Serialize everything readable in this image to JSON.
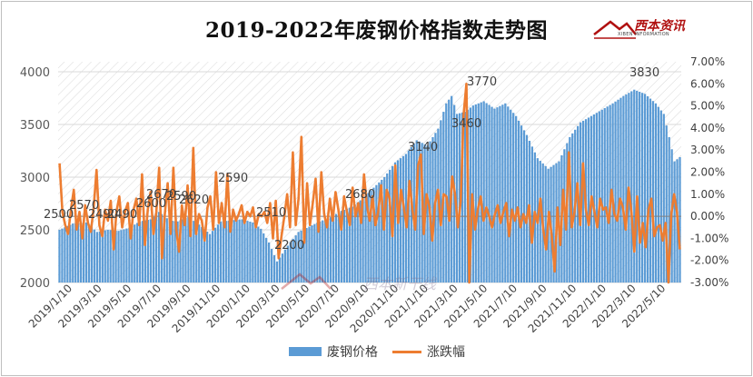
{
  "title": "2019-2022年废钢价格指数走势图",
  "logo": {
    "text": "西本资讯",
    "subtext": "XIBEN INFORMATION"
  },
  "watermark": {
    "text": "西本新干线"
  },
  "colors": {
    "bars": "#5b9bd5",
    "line": "#ed7d31",
    "hatch": "#d9d9d9"
  },
  "chart_data": {
    "type": "bar",
    "title": "2019-2022年废钢价格指数走势图",
    "x_tick_labels": [
      "2019/1/10",
      "2019/3/10",
      "2019/5/10",
      "2019/7/10",
      "2019/9/10",
      "2019/11/10",
      "2020/1/10",
      "2020/3/10",
      "2020/5/10",
      "2020/7/10",
      "2020/9/10",
      "2020/11/10",
      "2021/1/10",
      "2021/3/10",
      "2021/5/10",
      "2021/7/10",
      "2021/9/10",
      "2021/11/10",
      "2022/1/10",
      "2022/3/10",
      "2022/5/10"
    ],
    "y_left": {
      "ylim": [
        2000,
        4000
      ],
      "ticks": [
        2000,
        2500,
        3000,
        3500,
        4000
      ]
    },
    "y_right": {
      "ylim": [
        -3,
        7
      ],
      "ticks": [
        "-3.00%",
        "-2.00%",
        "-1.00%",
        "0.00%",
        "1.00%",
        "2.00%",
        "3.00%",
        "4.00%",
        "5.00%",
        "6.00%",
        "7.00%"
      ]
    },
    "legend_position": "bottom",
    "series": [
      {
        "name": "废钢价格",
        "type": "bar",
        "axis": "left",
        "anchors": [
          [
            0,
            2500
          ],
          [
            5,
            2560
          ],
          [
            10,
            2570
          ],
          [
            14,
            2480
          ],
          [
            18,
            2500
          ],
          [
            22,
            2490
          ],
          [
            26,
            2520
          ],
          [
            30,
            2580
          ],
          [
            34,
            2600
          ],
          [
            37,
            2670
          ],
          [
            41,
            2590
          ],
          [
            44,
            2580
          ],
          [
            48,
            2620
          ],
          [
            52,
            2550
          ],
          [
            56,
            2460
          ],
          [
            60,
            2580
          ],
          [
            64,
            2590
          ],
          [
            68,
            2600
          ],
          [
            72,
            2570
          ],
          [
            75,
            2510
          ],
          [
            78,
            2380
          ],
          [
            81,
            2200
          ],
          [
            85,
            2350
          ],
          [
            89,
            2480
          ],
          [
            93,
            2530
          ],
          [
            97,
            2580
          ],
          [
            101,
            2620
          ],
          [
            105,
            2680
          ],
          [
            109,
            2720
          ],
          [
            113,
            2800
          ],
          [
            117,
            2900
          ],
          [
            121,
            3000
          ],
          [
            125,
            3140
          ],
          [
            129,
            3220
          ],
          [
            133,
            3350
          ],
          [
            137,
            3300
          ],
          [
            141,
            3460
          ],
          [
            144,
            3700
          ],
          [
            146,
            3770
          ],
          [
            148,
            3600
          ],
          [
            151,
            3620
          ],
          [
            154,
            3680
          ],
          [
            158,
            3720
          ],
          [
            162,
            3650
          ],
          [
            166,
            3700
          ],
          [
            170,
            3580
          ],
          [
            174,
            3400
          ],
          [
            178,
            3180
          ],
          [
            182,
            3080
          ],
          [
            186,
            3150
          ],
          [
            190,
            3380
          ],
          [
            194,
            3520
          ],
          [
            198,
            3580
          ],
          [
            202,
            3640
          ],
          [
            206,
            3700
          ],
          [
            210,
            3770
          ],
          [
            214,
            3830
          ],
          [
            218,
            3790
          ],
          [
            222,
            3700
          ],
          [
            225,
            3600
          ],
          [
            227,
            3380
          ],
          [
            229,
            3150
          ],
          [
            231,
            3190
          ]
        ],
        "labels": [
          {
            "text": "2500",
            "value": 2500
          },
          {
            "text": "2570",
            "value": 2570
          },
          {
            "text": "2490",
            "value": 2490
          },
          {
            "text": "2490",
            "value": 2490
          },
          {
            "text": "2600",
            "value": 2600
          },
          {
            "text": "2670",
            "value": 2670
          },
          {
            "text": "2590",
            "value": 2590
          },
          {
            "text": "2620",
            "value": 2620
          },
          {
            "text": "2590",
            "value": 2590
          },
          {
            "text": "2510",
            "value": 2510
          },
          {
            "text": "2200",
            "value": 2200
          },
          {
            "text": "2680",
            "value": 2680
          },
          {
            "text": "3140",
            "value": 3140
          },
          {
            "text": "3460",
            "value": 3460
          },
          {
            "text": "3770",
            "value": 3770
          },
          {
            "text": "3830",
            "value": 3830
          }
        ]
      },
      {
        "name": "涨跌幅",
        "type": "line",
        "axis": "right",
        "unit": "%",
        "values": [
          2.4,
          0.2,
          -0.4,
          -0.8,
          0.3,
          1.2,
          -0.6,
          0.2,
          -1.0,
          0.5,
          -0.3,
          -0.7,
          0.4,
          2.1,
          -0.4,
          -0.9,
          0.3,
          -0.2,
          0.7,
          -1.5,
          0.2,
          0.9,
          -0.5,
          0.2,
          0.6,
          -1.0,
          0.3,
          0.8,
          -0.4,
          1.9,
          -1.3,
          0.3,
          1.1,
          -0.8,
          0.2,
          2.2,
          -1.9,
          0.1,
          1.5,
          -0.8,
          2.2,
          -0.6,
          -1.6,
          0.5,
          -0.4,
          1.4,
          -0.9,
          3.1,
          -0.8,
          0.1,
          -0.2,
          -1.1,
          0.4,
          0.9,
          -0.6,
          2.0,
          -0.3,
          0.6,
          -0.5,
          1.9,
          -0.7,
          0.3,
          -0.2,
          0.1,
          0.5,
          -0.3,
          0.2,
          0.0,
          0.4,
          -0.5,
          0.1,
          0.0,
          0.2,
          -0.3,
          0.6,
          -1.0,
          0.7,
          -1.9,
          -0.9,
          0.0,
          1.0,
          -0.5,
          2.9,
          -0.4,
          0.8,
          3.6,
          -1.2,
          1.5,
          -0.4,
          0.6,
          1.7,
          -0.7,
          2.0,
          0.1,
          -0.5,
          0.8,
          -0.2,
          1.1,
          0.3,
          -0.6,
          0.9,
          0.2,
          -0.4,
          1.3,
          0.0,
          0.6,
          -0.3,
          1.9,
          0.5,
          -0.2,
          0.9,
          -0.4,
          0.2,
          1.4,
          -0.6,
          1.2,
          0.8,
          -0.9,
          2.3,
          -0.3,
          1.2,
          0.4,
          -0.5,
          1.6,
          0.3,
          -0.6,
          2.3,
          2.8,
          -0.8,
          1.0,
          0.4,
          -1.1,
          0.6,
          1.2,
          -0.4,
          1.0,
          0.9,
          -0.2,
          1.8,
          1.0,
          -0.5,
          0.7,
          4.6,
          6.0,
          -3.0,
          1.0,
          -0.6,
          0.3,
          0.9,
          -0.2,
          0.4,
          0.0,
          -0.5,
          0.1,
          0.5,
          -0.3,
          0.2,
          0.6,
          -0.9,
          0.3,
          -0.2,
          0.4,
          -0.5,
          0.1,
          -0.3,
          0.5,
          -1.2,
          0.2,
          -0.3,
          0.8,
          -0.6,
          -1.5,
          0.2,
          -0.9,
          -2.5,
          0.4,
          -1.3,
          1.2,
          -0.6,
          2.9,
          -0.5,
          0.2,
          1.5,
          -0.4,
          2.4,
          0.3,
          -0.4,
          0.9,
          0.2,
          -0.5,
          0.8,
          0.3,
          0.4,
          -0.3,
          1.2,
          0.1,
          -0.2,
          0.8,
          0.4,
          -0.6,
          1.3,
          0.2,
          -1.6,
          0.9,
          -1.2,
          -0.3,
          -1.4,
          0.3,
          0.8,
          -0.9,
          -0.5,
          -0.4,
          -1.1,
          -0.3,
          -3.0,
          0.1,
          1.0,
          0.2,
          -1.5
        ]
      }
    ]
  }
}
